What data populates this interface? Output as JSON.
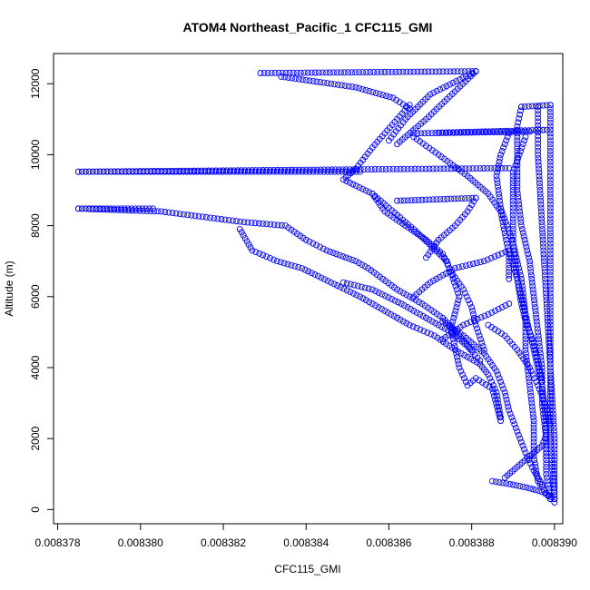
{
  "chart_data": {
    "type": "scatter",
    "title": "ATOM4 Northeast_Pacific_1 CFC115_GMI",
    "xlabel": "CFC115_GMI",
    "ylabel": "Altitude (m)",
    "xlim": [
      0.0083779,
      0.0083902
    ],
    "ylim": [
      -400,
      12850
    ],
    "x_ticks": [
      0.008378,
      0.00838,
      0.008382,
      0.008384,
      0.008386,
      0.008388,
      0.00839
    ],
    "x_tick_labels": [
      "0.008378",
      "0.008380",
      "0.008382",
      "0.008384",
      "0.008386",
      "0.008388",
      "0.008390"
    ],
    "y_ticks": [
      0,
      2000,
      4000,
      6000,
      8000,
      10000,
      12000
    ],
    "y_tick_labels": [
      "0",
      "2000",
      "4000",
      "6000",
      "8000",
      "10000",
      "12000"
    ],
    "color": "#0000ff",
    "marker": "open-circle",
    "series": [
      {
        "segments": [
          [
            [
              0.0083829,
              12300
            ],
            [
              0.0083881,
              12350
            ]
          ],
          [
            [
              0.0083881,
              12350
            ],
            [
              0.0083869,
              11000
            ],
            [
              0.0083862,
              10300
            ]
          ],
          [
            [
              0.0083881,
              12350
            ],
            [
              0.008387,
              11700
            ],
            [
              0.0083864,
              11000
            ],
            [
              0.008386,
              10400
            ]
          ],
          [
            [
              0.0083834,
              12200
            ],
            [
              0.0083852,
              11900
            ],
            [
              0.0083861,
              11600
            ],
            [
              0.0083865,
              11300
            ]
          ],
          [
            [
              0.0083865,
              11400
            ],
            [
              0.0083862,
              11000
            ],
            [
              0.0083856,
              10200
            ],
            [
              0.0083852,
              9600
            ]
          ]
        ]
      },
      {
        "segments": [
          [
            [
              0.0083785,
              9520
            ],
            [
              0.0083889,
              9620
            ]
          ],
          [
            [
              0.0083785,
              9520
            ],
            [
              0.0083853,
              9520
            ]
          ],
          [
            [
              0.0083852,
              9600
            ],
            [
              0.0083849,
              9300
            ],
            [
              0.0083856,
              8900
            ],
            [
              0.0083866,
              7900
            ],
            [
              0.0083874,
              7000
            ],
            [
              0.0083877,
              6000
            ],
            [
              0.0083875,
              5100
            ],
            [
              0.0083877,
              4000
            ],
            [
              0.0083879,
              3500
            ],
            [
              0.0083881,
              3700
            ],
            [
              0.0083885,
              3400
            ],
            [
              0.0083887,
              2500
            ]
          ]
        ]
      },
      {
        "segments": [
          [
            [
              0.0083785,
              8480
            ],
            [
              0.0083803,
              8480
            ]
          ],
          [
            [
              0.0083785,
              8480
            ],
            [
              0.0083805,
              8400
            ],
            [
              0.0083815,
              8250
            ],
            [
              0.0083825,
              8100
            ],
            [
              0.0083835,
              8000
            ],
            [
              0.008384,
              7600
            ],
            [
              0.0083845,
              7300
            ],
            [
              0.0083852,
              7000
            ],
            [
              0.0083855,
              6800
            ],
            [
              0.0083862,
              6200
            ],
            [
              0.0083868,
              5800
            ],
            [
              0.0083873,
              5400
            ],
            [
              0.0083877,
              4900
            ],
            [
              0.008388,
              4500
            ]
          ],
          [
            [
              0.0083824,
              7900
            ],
            [
              0.0083827,
              7300
            ],
            [
              0.0083833,
              7000
            ],
            [
              0.0083839,
              6800
            ],
            [
              0.0083846,
              6400
            ],
            [
              0.0083853,
              6000
            ],
            [
              0.0083859,
              5600
            ],
            [
              0.0083865,
              5200
            ],
            [
              0.0083871,
              4900
            ],
            [
              0.0083876,
              4500
            ],
            [
              0.0083882,
              4100
            ],
            [
              0.0083884,
              3800
            ],
            [
              0.0083886,
              3300
            ],
            [
              0.0083887,
              2600
            ]
          ],
          [
            [
              0.0083849,
              6400
            ],
            [
              0.0083856,
              6200
            ],
            [
              0.0083863,
              5800
            ],
            [
              0.0083869,
              5400
            ],
            [
              0.0083875,
              5000
            ],
            [
              0.0083879,
              4600
            ],
            [
              0.0083882,
              4200
            ]
          ]
        ]
      },
      {
        "segments": [
          [
            [
              0.0083862,
              8700
            ],
            [
              0.0083881,
              8780
            ]
          ],
          [
            [
              0.0083881,
              8780
            ],
            [
              0.0083879,
              8400
            ],
            [
              0.0083876,
              8000
            ],
            [
              0.0083872,
              7600
            ],
            [
              0.0083869,
              7100
            ]
          ],
          [
            [
              0.0083856,
              8900
            ],
            [
              0.0083859,
              8400
            ],
            [
              0.0083864,
              8000
            ],
            [
              0.0083869,
              7600
            ],
            [
              0.0083873,
              7200
            ],
            [
              0.0083875,
              6700
            ],
            [
              0.0083878,
              6200
            ],
            [
              0.008388,
              5700
            ],
            [
              0.0083881,
              5200
            ],
            [
              0.0083883,
              4500
            ]
          ],
          [
            [
              0.0083866,
              10500
            ],
            [
              0.0083872,
              10000
            ],
            [
              0.0083879,
              9400
            ],
            [
              0.0083884,
              8900
            ],
            [
              0.0083887,
              8400
            ],
            [
              0.0083888,
              7800
            ],
            [
              0.0083889,
              7200
            ],
            [
              0.0083889,
              6500
            ]
          ],
          [
            [
              0.0083866,
              6000
            ],
            [
              0.008387,
              6400
            ],
            [
              0.0083876,
              6800
            ],
            [
              0.0083883,
              7000
            ],
            [
              0.0083889,
              7300
            ]
          ],
          [
            [
              0.0083873,
              4800
            ],
            [
              0.0083878,
              5200
            ],
            [
              0.0083884,
              5500
            ],
            [
              0.0083889,
              5800
            ]
          ]
        ]
      },
      {
        "segments": [
          [
            [
              0.0083866,
              10600
            ],
            [
              0.0083894,
              10650
            ]
          ],
          [
            [
              0.0083872,
              10620
            ],
            [
              0.0083899,
              10700
            ]
          ],
          [
            [
              0.0083892,
              11350
            ],
            [
              0.0083899,
              11400
            ]
          ],
          [
            [
              0.0083892,
              11350
            ],
            [
              0.0083891,
              10800
            ],
            [
              0.0083891,
              10000
            ],
            [
              0.0083891,
              9000
            ],
            [
              0.0083892,
              8000
            ],
            [
              0.0083894,
              7000
            ],
            [
              0.0083895,
              6000
            ],
            [
              0.0083896,
              5000
            ],
            [
              0.0083897,
              4000
            ],
            [
              0.0083897,
              3000
            ],
            [
              0.0083898,
              2000
            ],
            [
              0.0083898,
              1000
            ],
            [
              0.0083899,
              300
            ]
          ],
          [
            [
              0.0083899,
              11400
            ],
            [
              0.0083899,
              10000
            ],
            [
              0.0083899,
              8000
            ],
            [
              0.0083899,
              6000
            ],
            [
              0.0083899,
              4000
            ],
            [
              0.00839,
              2000
            ],
            [
              0.00839,
              200
            ]
          ],
          [
            [
              0.0083896,
              11350
            ],
            [
              0.0083896,
              10000
            ],
            [
              0.0083897,
              8000
            ],
            [
              0.0083898,
              6000
            ],
            [
              0.0083899,
              4000
            ],
            [
              0.0083899,
              2000
            ],
            [
              0.00839,
              300
            ]
          ],
          [
            [
              0.0083893,
              10500
            ],
            [
              0.008389,
              9500
            ],
            [
              0.008389,
              8500
            ],
            [
              0.008389,
              7500
            ],
            [
              0.0083891,
              6500
            ],
            [
              0.0083893,
              5500
            ],
            [
              0.0083895,
              4500
            ],
            [
              0.0083897,
              3500
            ],
            [
              0.0083898,
              2500
            ],
            [
              0.0083898,
              1500
            ]
          ],
          [
            [
              0.0083889,
              10600
            ],
            [
              0.0083887,
              10000
            ],
            [
              0.0083886,
              9400
            ],
            [
              0.0083887,
              8500
            ],
            [
              0.008389,
              7500
            ],
            [
              0.0083892,
              6500
            ],
            [
              0.0083893,
              5500
            ],
            [
              0.0083893,
              4500
            ],
            [
              0.0083894,
              3500
            ],
            [
              0.0083895,
              2500
            ],
            [
              0.0083895,
              1500
            ],
            [
              0.0083896,
              800
            ],
            [
              0.0083899,
              300
            ]
          ],
          [
            [
              0.0083889,
              7300
            ],
            [
              0.0083891,
              6500
            ],
            [
              0.0083892,
              5800
            ],
            [
              0.0083893,
              5300
            ],
            [
              0.0083895,
              4700
            ],
            [
              0.0083896,
              4200
            ],
            [
              0.0083897,
              3600
            ]
          ],
          [
            [
              0.0083873,
              5300
            ],
            [
              0.0083878,
              4900
            ],
            [
              0.0083883,
              4400
            ],
            [
              0.0083886,
              3900
            ],
            [
              0.0083888,
              3300
            ],
            [
              0.0083889,
              2800
            ],
            [
              0.0083891,
              2200
            ],
            [
              0.0083893,
              1600
            ],
            [
              0.0083895,
              1100
            ],
            [
              0.0083897,
              700
            ]
          ],
          [
            [
              0.0083884,
              5200
            ],
            [
              0.0083888,
              4900
            ],
            [
              0.0083891,
              4500
            ],
            [
              0.0083894,
              4000
            ],
            [
              0.0083896,
              3500
            ],
            [
              0.0083898,
              2900
            ],
            [
              0.0083899,
              2300
            ]
          ],
          [
            [
              0.0083885,
              800
            ],
            [
              0.008389,
              700
            ],
            [
              0.0083894,
              600
            ],
            [
              0.0083897,
              500
            ],
            [
              0.00839,
              300
            ]
          ],
          [
            [
              0.0083888,
              900
            ],
            [
              0.0083891,
              1200
            ],
            [
              0.0083894,
              1500
            ],
            [
              0.0083897,
              1800
            ],
            [
              0.0083898,
              2100
            ]
          ]
        ]
      }
    ]
  }
}
